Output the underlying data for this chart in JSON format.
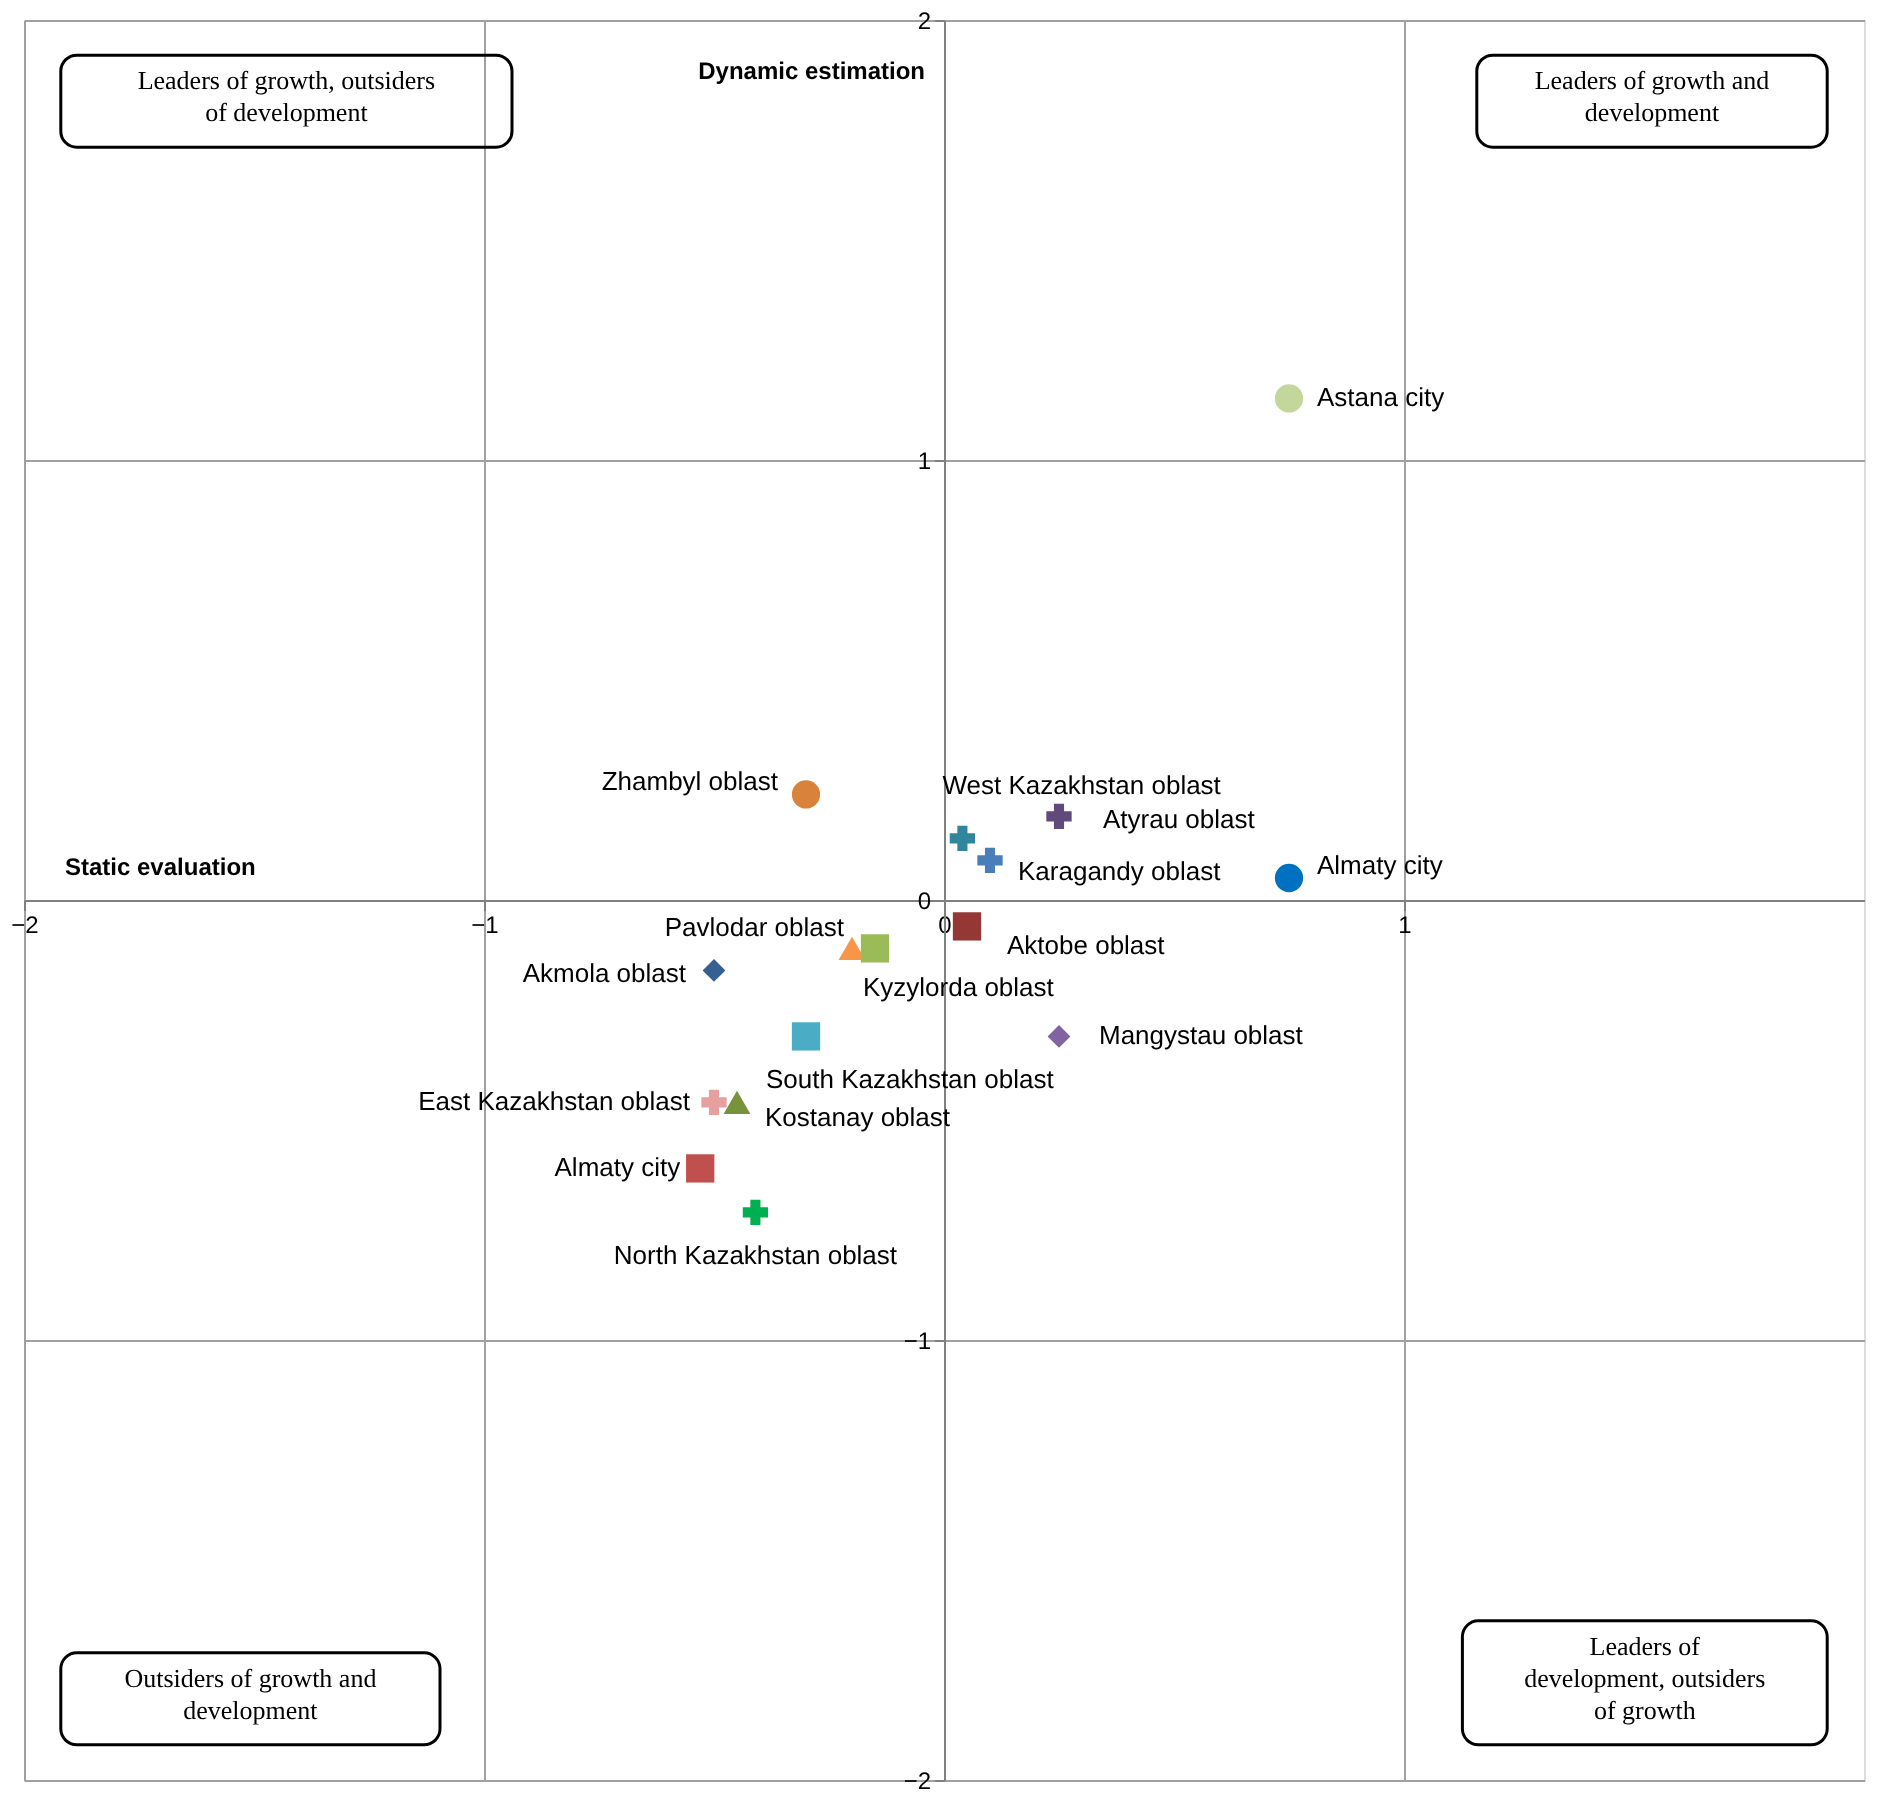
{
  "chart_data": {
    "type": "scatter",
    "xlabel": "Static evaluation",
    "ylabel": "Dynamic estimation",
    "xlim": [
      -2,
      2
    ],
    "ylim": [
      -2,
      2
    ],
    "xticks": [
      -2,
      -1,
      0,
      1
    ],
    "yticks": [
      -2,
      -1,
      0,
      1,
      2
    ],
    "grid": true,
    "annotations": [
      "Leaders of growth, outsiders\nof development",
      "Leaders of growth and\ndevelopment",
      "Outsiders of growth and\ndevelopment",
      "Leaders of\ndevelopment, outsiders\nof growth"
    ],
    "series": [
      {
        "name": "Astana city",
        "color": "#c3d69b",
        "marker": "circle",
        "x": [
          0.75
        ],
        "values": [
          1.14
        ]
      },
      {
        "name": "Almaty city",
        "color": "#0070c0",
        "marker": "circle",
        "x": [
          0.75
        ],
        "values": [
          0.05
        ]
      },
      {
        "name": "Zhambyl oblast",
        "color": "#d9823b",
        "marker": "circle",
        "x": [
          -0.3
        ],
        "values": [
          0.24
        ]
      },
      {
        "name": "West Kazakhstan oblast",
        "color": "#31859c",
        "marker": "cross",
        "x": [
          0.04
        ],
        "values": [
          0.14
        ]
      },
      {
        "name": "Atyrau oblast",
        "color": "#604a7b",
        "marker": "cross",
        "x": [
          0.25
        ],
        "values": [
          0.19
        ]
      },
      {
        "name": "Karagandy oblast",
        "color": "#4a7ebb",
        "marker": "cross",
        "x": [
          0.1
        ],
        "values": [
          0.09
        ]
      },
      {
        "name": "Aktobe oblast",
        "color": "#953735",
        "marker": "square",
        "x": [
          0.05
        ],
        "values": [
          -0.06
        ]
      },
      {
        "name": "Pavlodar oblast",
        "color": "#f79646",
        "marker": "triangle",
        "x": [
          -0.2
        ],
        "values": [
          -0.11
        ]
      },
      {
        "name": "Kyzylorda oblast",
        "color": "#9bbb59",
        "marker": "square",
        "x": [
          -0.15
        ],
        "values": [
          -0.11
        ]
      },
      {
        "name": "Akmola oblast",
        "color": "#376092",
        "marker": "diamond",
        "x": [
          -0.5
        ],
        "values": [
          -0.16
        ]
      },
      {
        "name": "South Kazakhstan oblast",
        "color": "#4bacc6",
        "marker": "square",
        "x": [
          -0.3
        ],
        "values": [
          -0.31
        ]
      },
      {
        "name": "Mangystau oblast",
        "color": "#8064a2",
        "marker": "diamond",
        "x": [
          0.25
        ],
        "values": [
          -0.31
        ]
      },
      {
        "name": "East Kazakhstan oblast",
        "color": "#e6a0a0",
        "marker": "cross",
        "x": [
          -0.5
        ],
        "values": [
          -0.46
        ]
      },
      {
        "name": "Kostanay oblast",
        "color": "#77933c",
        "marker": "triangle",
        "x": [
          -0.45
        ],
        "values": [
          -0.46
        ]
      },
      {
        "name": "Almaty city",
        "color": "#c0504d",
        "marker": "square",
        "x": [
          -0.53
        ],
        "values": [
          -0.61
        ]
      },
      {
        "name": "North Kazakhstan oblast",
        "color": "#00b050",
        "marker": "cross",
        "x": [
          -0.41
        ],
        "values": [
          -0.71
        ]
      }
    ]
  }
}
